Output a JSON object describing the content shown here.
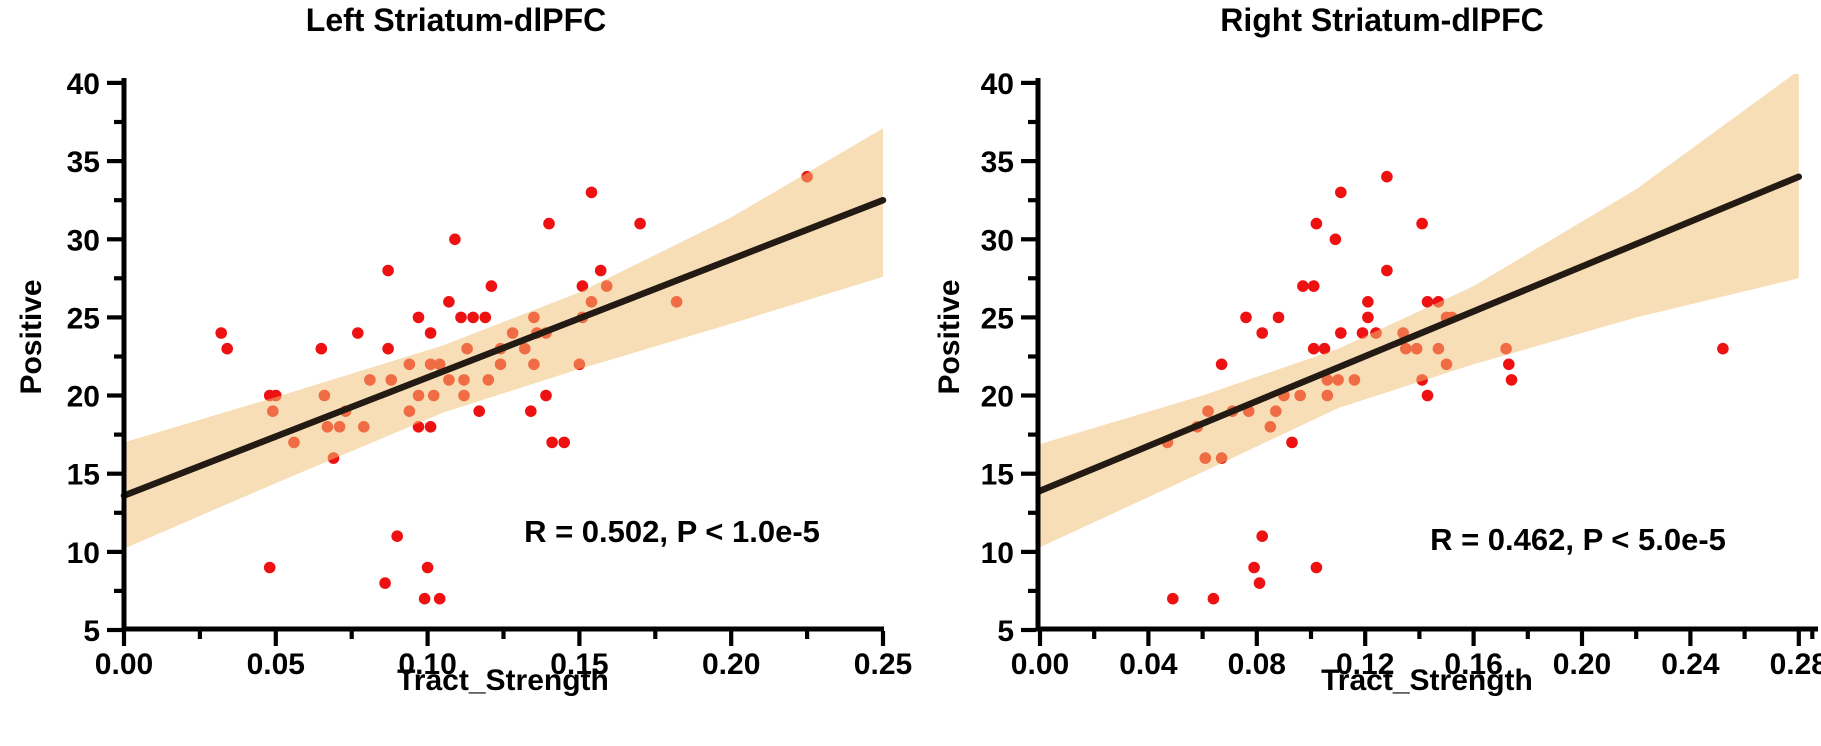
{
  "figure": {
    "background": "#ffffff",
    "text_color": "#000000"
  },
  "chart_data": [
    {
      "type": "scatter",
      "title": "Left Striatum-dlPFC",
      "xlabel": "Tract_Strength",
      "ylabel": "Positive",
      "annotation": "R = 0.502, P < 1.0e-5",
      "xlim": [
        0,
        0.25
      ],
      "ylim": [
        5,
        40
      ],
      "x_tick_labels": [
        "0.00",
        "0.05",
        "0.10",
        "0.15",
        "0.20",
        "0.25"
      ],
      "x_major_ticks": [
        0,
        0.05,
        0.1,
        0.15,
        0.2,
        0.25
      ],
      "x_minor_ticks": [
        0.025,
        0.075,
        0.125,
        0.175,
        0.225
      ],
      "y_major_ticks": [
        5,
        10,
        15,
        20,
        25,
        30,
        35,
        40
      ],
      "y_minor_ticks": [
        7.5,
        12.5,
        17.5,
        22.5,
        27.5,
        32.5,
        37.5
      ],
      "grid": false,
      "point_color": "#ee1111",
      "band_color": "#f0c075",
      "line_color": "#231a14",
      "regression": {
        "x": [
          0,
          0.25
        ],
        "y": [
          13.6,
          32.5
        ]
      },
      "ci_band": {
        "x": [
          0,
          0.05,
          0.105,
          0.15,
          0.2,
          0.25
        ],
        "lower": [
          10.2,
          14.4,
          18.9,
          21.7,
          24.6,
          27.6
        ],
        "upper": [
          17.0,
          19.9,
          23.2,
          26.6,
          31.4,
          37.1
        ]
      },
      "points": [
        [
          0.032,
          24
        ],
        [
          0.034,
          23
        ],
        [
          0.048,
          20
        ],
        [
          0.05,
          20
        ],
        [
          0.049,
          19
        ],
        [
          0.048,
          9
        ],
        [
          0.056,
          17
        ],
        [
          0.065,
          23
        ],
        [
          0.066,
          20
        ],
        [
          0.067,
          18
        ],
        [
          0.069,
          16
        ],
        [
          0.071,
          18
        ],
        [
          0.073,
          19
        ],
        [
          0.077,
          24
        ],
        [
          0.079,
          18
        ],
        [
          0.081,
          21
        ],
        [
          0.086,
          8
        ],
        [
          0.087,
          23
        ],
        [
          0.087,
          28
        ],
        [
          0.088,
          21
        ],
        [
          0.09,
          11
        ],
        [
          0.094,
          19
        ],
        [
          0.094,
          22
        ],
        [
          0.097,
          18
        ],
        [
          0.097,
          20
        ],
        [
          0.097,
          25
        ],
        [
          0.099,
          7
        ],
        [
          0.1,
          9
        ],
        [
          0.101,
          24
        ],
        [
          0.101,
          18
        ],
        [
          0.102,
          20
        ],
        [
          0.104,
          7
        ],
        [
          0.104,
          22
        ],
        [
          0.101,
          22
        ],
        [
          0.107,
          21
        ],
        [
          0.109,
          30
        ],
        [
          0.107,
          26
        ],
        [
          0.111,
          25
        ],
        [
          0.112,
          20
        ],
        [
          0.112,
          21
        ],
        [
          0.113,
          23
        ],
        [
          0.115,
          25
        ],
        [
          0.117,
          19
        ],
        [
          0.119,
          25
        ],
        [
          0.12,
          21
        ],
        [
          0.121,
          27
        ],
        [
          0.124,
          23
        ],
        [
          0.124,
          22
        ],
        [
          0.128,
          24
        ],
        [
          0.132,
          23
        ],
        [
          0.134,
          19
        ],
        [
          0.135,
          25
        ],
        [
          0.135,
          22
        ],
        [
          0.136,
          24
        ],
        [
          0.139,
          24
        ],
        [
          0.139,
          20
        ],
        [
          0.14,
          31
        ],
        [
          0.141,
          17
        ],
        [
          0.145,
          17
        ],
        [
          0.15,
          22
        ],
        [
          0.151,
          27
        ],
        [
          0.151,
          25
        ],
        [
          0.154,
          33
        ],
        [
          0.154,
          26
        ],
        [
          0.157,
          28
        ],
        [
          0.159,
          27
        ],
        [
          0.17,
          31
        ],
        [
          0.182,
          26
        ],
        [
          0.225,
          34
        ]
      ]
    },
    {
      "type": "scatter",
      "title": "Right Striatum-dlPFC",
      "xlabel": "Tract_Strength",
      "ylabel": "Positive",
      "annotation": "R = 0.462, P < 5.0e-5",
      "xlim": [
        0,
        0.28
      ],
      "ylim": [
        5,
        40
      ],
      "x_tick_labels": [
        "0.00",
        "0.04",
        "0.08",
        "0.12",
        "0.16",
        "0.20",
        "0.24",
        "0.28"
      ],
      "x_major_ticks": [
        0,
        0.04,
        0.08,
        0.12,
        0.16,
        0.2,
        0.24,
        0.28
      ],
      "x_minor_ticks": [
        0.02,
        0.06,
        0.1,
        0.14,
        0.18,
        0.22,
        0.26,
        0.285
      ],
      "y_major_ticks": [
        5,
        10,
        15,
        20,
        25,
        30,
        35,
        40
      ],
      "y_minor_ticks": [
        7.5,
        12.5,
        17.5,
        22.5,
        27.5,
        32.5,
        37.5
      ],
      "grid": false,
      "point_color": "#ee1111",
      "band_color": "#f0c075",
      "line_color": "#231a14",
      "regression": {
        "x": [
          0,
          0.28
        ],
        "y": [
          13.9,
          34.0
        ]
      },
      "ci_band": {
        "x": [
          0,
          0.06,
          0.11,
          0.16,
          0.22,
          0.28
        ],
        "lower": [
          10.3,
          15.1,
          19.2,
          22.0,
          25.0,
          27.5
        ],
        "upper": [
          16.9,
          20.0,
          23.0,
          27.0,
          33.2,
          40.8
        ]
      },
      "points": [
        [
          0.047,
          17
        ],
        [
          0.049,
          7
        ],
        [
          0.058,
          18
        ],
        [
          0.061,
          16
        ],
        [
          0.062,
          19
        ],
        [
          0.064,
          7
        ],
        [
          0.067,
          16
        ],
        [
          0.067,
          22
        ],
        [
          0.071,
          19
        ],
        [
          0.076,
          25
        ],
        [
          0.077,
          19
        ],
        [
          0.079,
          9
        ],
        [
          0.081,
          8
        ],
        [
          0.082,
          11
        ],
        [
          0.082,
          24
        ],
        [
          0.085,
          18
        ],
        [
          0.087,
          19
        ],
        [
          0.088,
          25
        ],
        [
          0.09,
          20
        ],
        [
          0.093,
          17
        ],
        [
          0.096,
          20
        ],
        [
          0.097,
          27
        ],
        [
          0.101,
          27
        ],
        [
          0.101,
          23
        ],
        [
          0.102,
          31
        ],
        [
          0.102,
          9
        ],
        [
          0.105,
          23
        ],
        [
          0.106,
          20
        ],
        [
          0.106,
          21
        ],
        [
          0.109,
          30
        ],
        [
          0.11,
          21
        ],
        [
          0.111,
          33
        ],
        [
          0.111,
          24
        ],
        [
          0.116,
          21
        ],
        [
          0.119,
          24
        ],
        [
          0.121,
          26
        ],
        [
          0.121,
          25
        ],
        [
          0.124,
          24
        ],
        [
          0.128,
          34
        ],
        [
          0.128,
          28
        ],
        [
          0.134,
          24
        ],
        [
          0.135,
          23
        ],
        [
          0.139,
          23
        ],
        [
          0.141,
          31
        ],
        [
          0.141,
          21
        ],
        [
          0.143,
          20
        ],
        [
          0.143,
          26
        ],
        [
          0.147,
          26
        ],
        [
          0.147,
          23
        ],
        [
          0.15,
          25
        ],
        [
          0.15,
          22
        ],
        [
          0.152,
          25
        ],
        [
          0.172,
          23
        ],
        [
          0.173,
          22
        ],
        [
          0.174,
          21
        ],
        [
          0.252,
          23
        ]
      ]
    }
  ]
}
